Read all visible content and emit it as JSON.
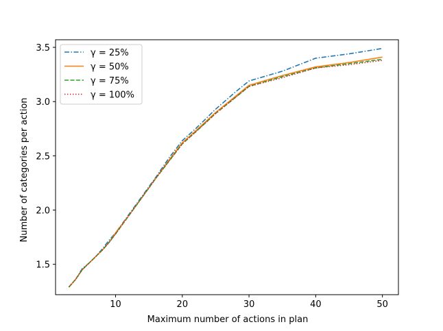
{
  "chart_data": {
    "type": "line",
    "title": "",
    "xlabel": "Maximum number of actions in plan",
    "ylabel": "Number of categories per action",
    "xlim": [
      1,
      52.4
    ],
    "ylim": [
      1.22,
      3.57
    ],
    "xticks": [
      10,
      20,
      30,
      40,
      50
    ],
    "yticks": [
      1.5,
      2.0,
      2.5,
      3.0,
      3.5
    ],
    "xtick_labels": [
      "10",
      "20",
      "30",
      "40",
      "50"
    ],
    "ytick_labels": [
      "1.5",
      "2.0",
      "2.5",
      "3.0",
      "3.5"
    ],
    "grid": false,
    "legend_position": "upper-left",
    "x": [
      3,
      4,
      5,
      6,
      7,
      8,
      9,
      10,
      12,
      14,
      16,
      18,
      20,
      22,
      25,
      28,
      30,
      35,
      40,
      45,
      50
    ],
    "series": [
      {
        "name": "γ = 25%",
        "color": "#1f77b4",
        "dash": "dashdot",
        "values": [
          1.29,
          1.36,
          1.46,
          1.51,
          1.57,
          1.64,
          1.72,
          1.79,
          1.96,
          2.13,
          2.3,
          2.48,
          2.64,
          2.75,
          2.93,
          3.09,
          3.19,
          3.28,
          3.4,
          3.44,
          3.49
        ]
      },
      {
        "name": "γ = 50%",
        "color": "#ff7f0e",
        "dash": "solid",
        "values": [
          1.29,
          1.36,
          1.45,
          1.51,
          1.57,
          1.63,
          1.7,
          1.79,
          1.95,
          2.12,
          2.29,
          2.46,
          2.62,
          2.73,
          2.9,
          3.05,
          3.15,
          3.24,
          3.32,
          3.36,
          3.41
        ]
      },
      {
        "name": "γ = 75%",
        "color": "#2ca02c",
        "dash": "dashed",
        "values": [
          1.29,
          1.36,
          1.45,
          1.51,
          1.57,
          1.63,
          1.7,
          1.78,
          1.95,
          2.12,
          2.29,
          2.45,
          2.61,
          2.72,
          2.89,
          3.04,
          3.14,
          3.23,
          3.31,
          3.35,
          3.39
        ]
      },
      {
        "name": "γ = 100%",
        "color": "#d62728",
        "dash": "dotted",
        "values": [
          1.29,
          1.36,
          1.45,
          1.51,
          1.57,
          1.63,
          1.7,
          1.78,
          1.95,
          2.12,
          2.29,
          2.45,
          2.61,
          2.72,
          2.89,
          3.04,
          3.14,
          3.22,
          3.31,
          3.34,
          3.38
        ]
      }
    ]
  }
}
